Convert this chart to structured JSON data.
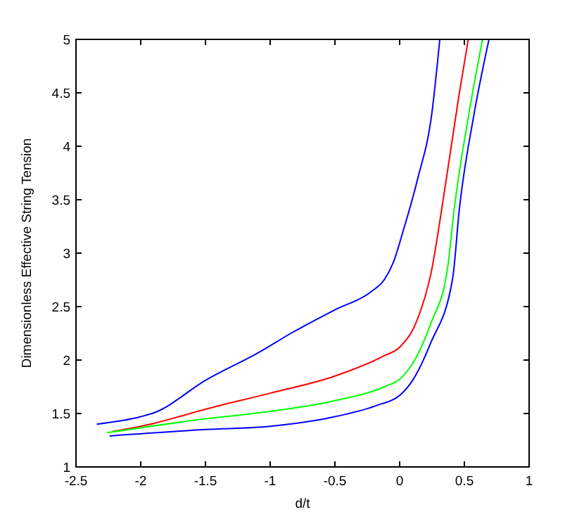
{
  "chart_data": {
    "type": "line",
    "xlabel": "d/t",
    "ylabel": "Dimensionless Effective String Tension",
    "xlim": [
      -2.5,
      1
    ],
    "ylim": [
      1,
      5
    ],
    "xticks": [
      -2.5,
      -2,
      -1.5,
      -1,
      -0.5,
      0,
      0.5,
      1
    ],
    "yticks": [
      1,
      1.5,
      2,
      2.5,
      3,
      3.5,
      4,
      4.5,
      5
    ],
    "grid": false,
    "marker": "none",
    "line_style": "solid",
    "series": [
      {
        "color": "#0000ff",
        "x": [
          -2.34,
          -2,
          -1.89,
          -1.5,
          -1.09,
          -0.84,
          -0.5,
          -0.22,
          -0.12,
          -0.05,
          0.03,
          0.14,
          0.25,
          0.31
        ],
        "values": [
          1.4,
          1.47,
          1.51,
          1.81,
          2.07,
          2.25,
          2.47,
          2.64,
          2.75,
          2.91,
          3.22,
          3.7,
          4.32,
          5
        ]
      },
      {
        "color": "#ff0000",
        "x": [
          -2.22,
          -1.89,
          -1.5,
          -1,
          -0.5,
          -0.12,
          0,
          0.13,
          0.24,
          0.35,
          0.46,
          0.53
        ],
        "values": [
          1.33,
          1.41,
          1.54,
          1.69,
          1.85,
          2.04,
          2.12,
          2.36,
          2.8,
          3.61,
          4.49,
          5
        ]
      },
      {
        "color": "#00ff00",
        "x": [
          -2.26,
          -1.5,
          -1,
          -0.5,
          -0.12,
          0.01,
          0.13,
          0.24,
          0.37,
          0.42,
          0.53,
          0.64
        ],
        "values": [
          1.32,
          1.45,
          1.52,
          1.62,
          1.75,
          1.83,
          2.03,
          2.34,
          2.86,
          3.4,
          4.27,
          5
        ]
      },
      {
        "color": "#0000ff",
        "x": [
          -2.24,
          -1.5,
          -1,
          -0.5,
          -0.19,
          0.01,
          0.1,
          0.24,
          0.41,
          0.46,
          0.57,
          0.69
        ],
        "values": [
          1.29,
          1.35,
          1.38,
          1.47,
          1.57,
          1.68,
          1.81,
          2.16,
          2.77,
          3.4,
          4.27,
          5
        ]
      }
    ]
  }
}
